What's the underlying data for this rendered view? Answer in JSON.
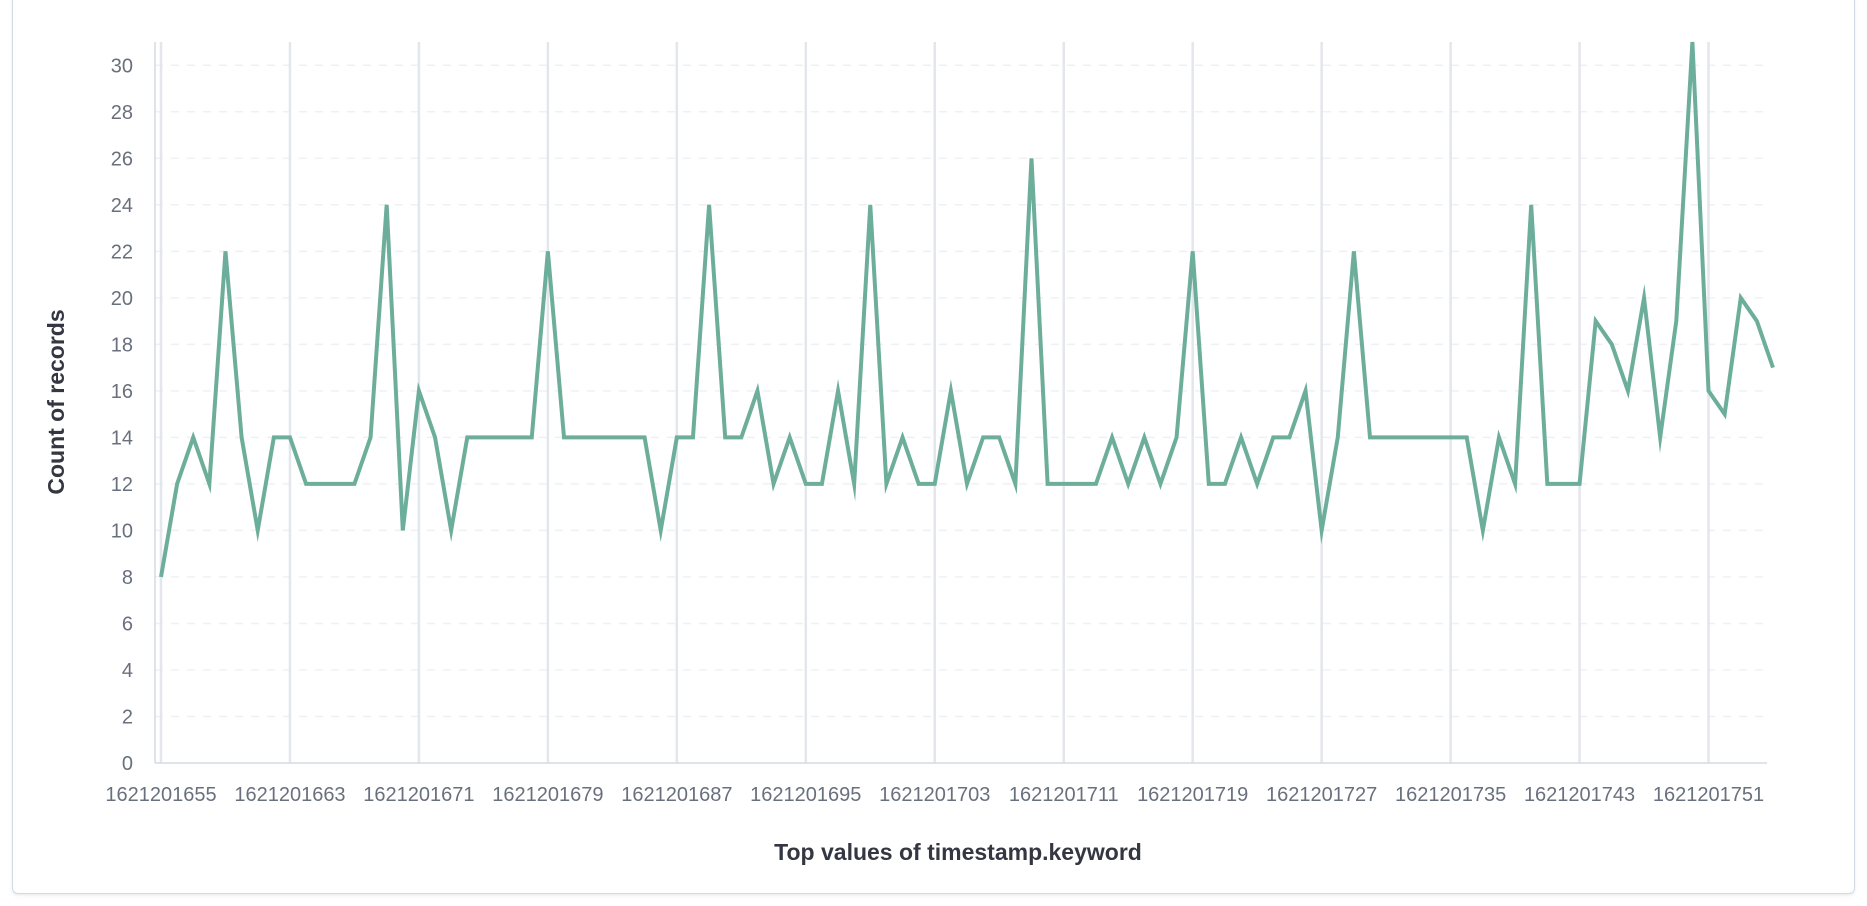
{
  "chart_data": {
    "type": "line",
    "title": "",
    "xlabel": "Top values of timestamp.keyword",
    "ylabel": "Count of records",
    "x_start": 1621201655,
    "x_end": 1621201754,
    "x_tick_labels": [
      "1621201655",
      "1621201663",
      "1621201671",
      "1621201679",
      "1621201687",
      "1621201695",
      "1621201703",
      "1621201711",
      "1621201719",
      "1621201727",
      "1621201735",
      "1621201743",
      "1621201751"
    ],
    "y_ticks": [
      0,
      2,
      4,
      6,
      8,
      10,
      12,
      14,
      16,
      18,
      20,
      22,
      24,
      26,
      28,
      30
    ],
    "ylim": [
      0,
      31
    ],
    "grid": true,
    "series": [
      {
        "color": "#6dae9b",
        "values": [
          8,
          12,
          14,
          12,
          22,
          14,
          10,
          14,
          14,
          12,
          12,
          12,
          12,
          14,
          24,
          10,
          16,
          14,
          10,
          14,
          14,
          14,
          14,
          14,
          22,
          14,
          14,
          14,
          14,
          14,
          14,
          10,
          14,
          14,
          24,
          14,
          14,
          16,
          12,
          14,
          12,
          12,
          16,
          12,
          24,
          12,
          14,
          12,
          12,
          16,
          12,
          14,
          14,
          12,
          26,
          12,
          12,
          12,
          12,
          14,
          12,
          14,
          12,
          14,
          22,
          12,
          12,
          14,
          12,
          14,
          14,
          16,
          10,
          14,
          22,
          14,
          14,
          14,
          14,
          14,
          14,
          14,
          10,
          14,
          12,
          24,
          12,
          12,
          12,
          19,
          18,
          16,
          20,
          14,
          19,
          31,
          16,
          15,
          20,
          19,
          17
        ]
      }
    ]
  }
}
